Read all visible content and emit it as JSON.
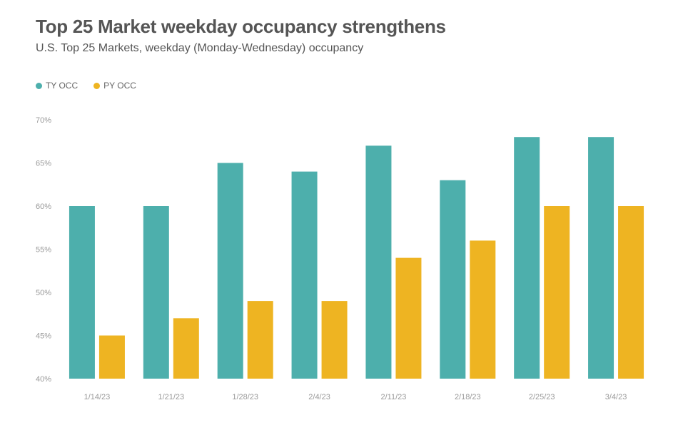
{
  "chart_data": {
    "type": "bar",
    "title": "Top 25 Market weekday occupancy strengthens",
    "subtitle": "U.S. Top 25 Markets, weekday (Monday-Wednesday) occupancy",
    "categories": [
      "1/14/23",
      "1/21/23",
      "1/28/23",
      "2/4/23",
      "2/11/23",
      "2/18/23",
      "2/25/23",
      "3/4/23"
    ],
    "series": [
      {
        "name": "TY OCC",
        "color": "#4DAFAC",
        "values": [
          60,
          60,
          65,
          64,
          67,
          63,
          68,
          68
        ]
      },
      {
        "name": "PY OCC",
        "color": "#EEB422",
        "values": [
          45,
          47,
          49,
          49,
          54,
          56,
          60,
          60
        ]
      }
    ],
    "ylim": [
      40,
      70
    ],
    "yticks": [
      40,
      45,
      50,
      55,
      60,
      65,
      70
    ],
    "ytick_suffix": "%",
    "legend_position": "top-left",
    "grid": false
  }
}
